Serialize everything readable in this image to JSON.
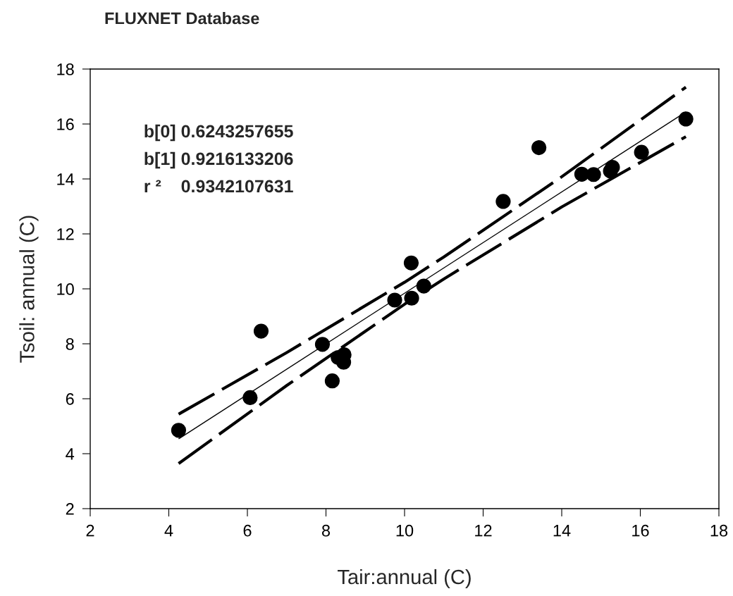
{
  "chart_data": {
    "type": "scatter",
    "title": "FLUXNET Database",
    "xlabel": "Tair:annual (C)",
    "ylabel": "Tsoil: annual (C)",
    "xlim": [
      2,
      18
    ],
    "xticks": [
      2,
      4,
      6,
      8,
      10,
      12,
      14,
      16,
      18
    ],
    "ylim": [
      2,
      18
    ],
    "yticks": [
      2,
      4,
      6,
      8,
      10,
      12,
      14,
      16,
      18
    ],
    "grid": false,
    "annotations": [
      "b[0] 0.6243257655",
      "b[1] 0.9216133206",
      "r ²    0.9342107631"
    ],
    "series": [
      {
        "type": "scatter",
        "color": "#000000",
        "marker": "circle",
        "x": [
          4.25,
          6.07,
          6.35,
          7.91,
          8.16,
          8.31,
          8.46,
          8.45,
          9.75,
          10.18,
          10.49,
          10.17,
          12.51,
          13.42,
          14.51,
          14.81,
          15.29,
          15.24,
          16.03,
          17.16
        ],
        "values": [
          4.85,
          6.04,
          8.46,
          7.98,
          6.65,
          7.5,
          7.6,
          7.33,
          9.59,
          9.66,
          10.1,
          10.94,
          13.18,
          15.14,
          14.17,
          14.16,
          14.42,
          14.29,
          14.97,
          16.18
        ]
      },
      {
        "type": "line",
        "color": "#000000",
        "line_style": "solid",
        "x": [
          4.25,
          17.16
        ],
        "values": [
          4.54,
          16.44
        ]
      },
      {
        "type": "line",
        "color": "#000000",
        "line_style": "dashed",
        "x": [
          4.25,
          7,
          10,
          11,
          14,
          17.16
        ],
        "values": [
          5.44,
          7.68,
          10.24,
          11.16,
          14.08,
          17.34
        ]
      },
      {
        "type": "line",
        "color": "#000000",
        "line_style": "dashed",
        "x": [
          4.25,
          7,
          10,
          11,
          14,
          17.16
        ],
        "values": [
          3.64,
          6.48,
          9.44,
          10.36,
          12.98,
          15.54
        ]
      }
    ]
  }
}
